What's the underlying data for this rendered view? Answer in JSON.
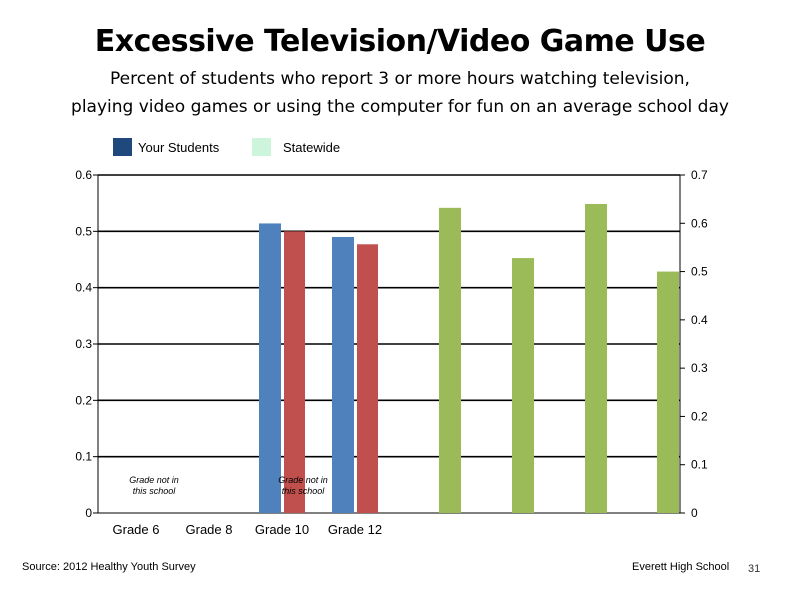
{
  "chart_data": {
    "type": "bar",
    "title": "Excessive Television/Video Game Use",
    "subtitle_line1": "Percent of students who report 3 or more hours watching television,",
    "subtitle_line2": "playing video games or using the computer for fun on an average school day",
    "categories": [
      "Grade 6",
      "Grade 8",
      "Grade 10",
      "Grade 12"
    ],
    "series": [
      {
        "name": "Your Students",
        "axis": "left",
        "color": "#4f81bd",
        "values": [
          null,
          null,
          0.514,
          0.49
        ]
      },
      {
        "name": "Statewide",
        "axis": "left",
        "color": "#c0504d",
        "values": [
          null,
          null,
          0.5,
          0.477
        ]
      },
      {
        "axis": "right",
        "color": "#9bbb59",
        "values": [
          0.632,
          0.528,
          0.64,
          0.5
        ]
      }
    ],
    "legend": [
      {
        "label": "Your Students",
        "color": "#1f497d"
      },
      {
        "label": "Statewide",
        "color": "#ccf5dc"
      }
    ],
    "left_axis": {
      "ylim": [
        0,
        0.6
      ],
      "ticks": [
        "0",
        "0.1",
        "0.2",
        "0.3",
        "0.4",
        "0.5",
        "0.6"
      ]
    },
    "right_axis": {
      "ylim": [
        0,
        0.7
      ],
      "ticks": [
        "0",
        "0.1",
        "0.2",
        "0.3",
        "0.4",
        "0.5",
        "0.6",
        "0.7"
      ]
    },
    "gridlines": true,
    "annotations": [
      {
        "category": "Grade 6",
        "lines": [
          "Grade not in",
          "this school"
        ]
      },
      {
        "category": "Grade 10",
        "lines": [
          "Grade not in",
          "this school"
        ]
      }
    ]
  },
  "footer": {
    "source": "Source: 2012 Healthy Youth Survey",
    "school": "Everett High School",
    "page": "31"
  }
}
